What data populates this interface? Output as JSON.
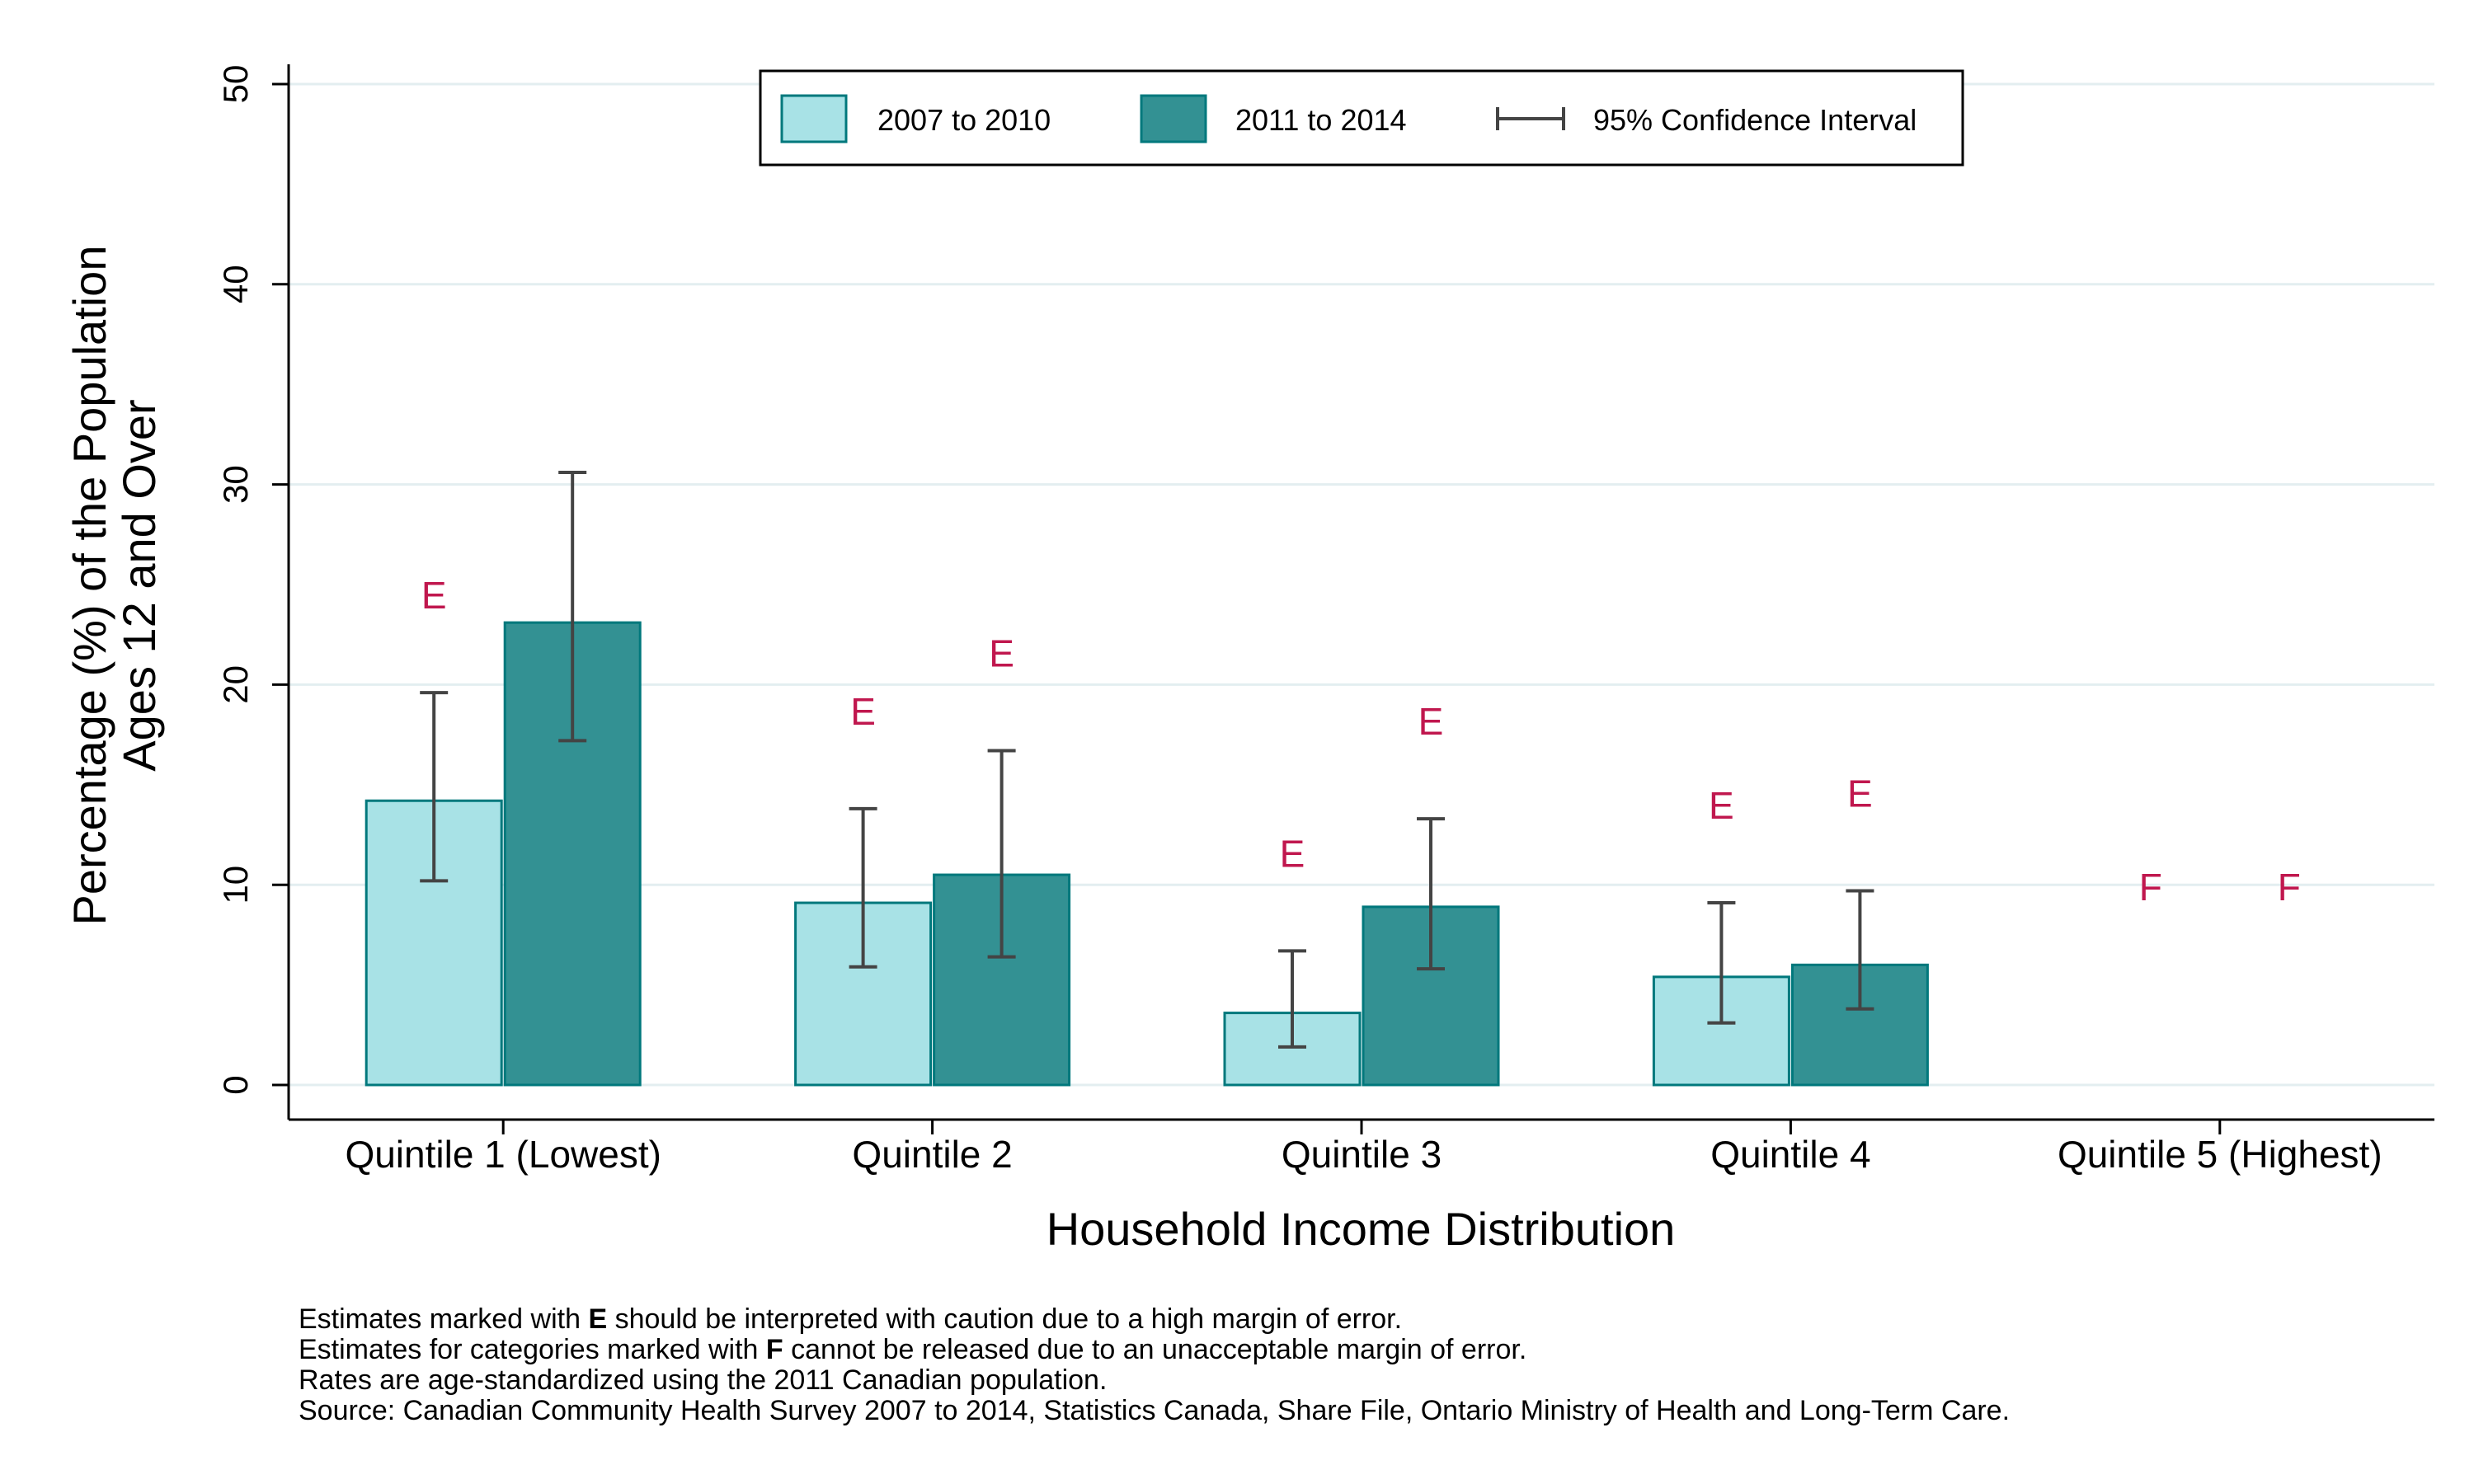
{
  "chart_data": {
    "type": "bar",
    "categories": [
      "Quintile 1 (Lowest)",
      "Quintile 2",
      "Quintile 3",
      "Quintile 4",
      "Quintile 5 (Highest)"
    ],
    "series": [
      {
        "name": "2007 to 2010",
        "color": "#a8e2e6",
        "values": [
          14.2,
          9.1,
          3.6,
          5.4,
          null
        ],
        "ci_low": [
          10.2,
          5.9,
          1.9,
          3.1,
          null
        ],
        "ci_high": [
          19.6,
          13.8,
          6.7,
          9.1,
          null
        ],
        "flags": [
          "E",
          "E",
          "E",
          "E",
          "F"
        ]
      },
      {
        "name": "2011 to 2014",
        "color": "#339193",
        "values": [
          23.1,
          10.5,
          8.9,
          6.0,
          null
        ],
        "ci_low": [
          17.2,
          6.4,
          5.8,
          3.8,
          null
        ],
        "ci_high": [
          30.6,
          16.7,
          13.3,
          9.7,
          null
        ],
        "flags": [
          "",
          "E",
          "E",
          "E",
          "F"
        ]
      }
    ],
    "ci_legend": "95% Confidence Interval",
    "xlabel": "Household Income Distribution",
    "ylabel_lines": [
      "Percentage (%) of the Population",
      "Ages 12 and Over"
    ],
    "ylim": [
      0,
      50
    ],
    "yticks": [
      0,
      10,
      20,
      30,
      40,
      50
    ],
    "grid": true,
    "legend_position": "top-center",
    "flag_color": "#c0174e"
  },
  "footnotes": {
    "line1_pre": "Estimates marked with ",
    "line1_flag": "E",
    "line1_post": " should be interpreted with caution due to a high margin of error.",
    "line2_pre": "Estimates for categories marked with ",
    "line2_flag": "F",
    "line2_post": " cannot be released due to an unacceptable margin of error.",
    "line3": "Rates are age-standardized using the 2011 Canadian population.",
    "line4": "Source: Canadian Community Health Survey 2007 to 2014, Statistics Canada, Share File, Ontario Ministry of Health and Long-Term Care."
  }
}
